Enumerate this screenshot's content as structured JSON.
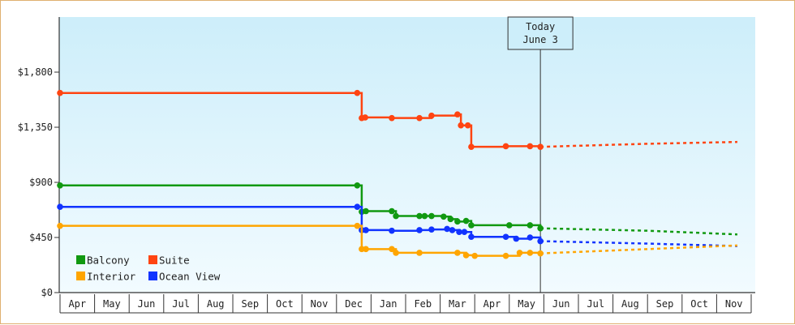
{
  "chart_data": {
    "type": "line",
    "title": "",
    "xlabel": "",
    "ylabel": "",
    "ylim": [
      0,
      2250
    ],
    "yticks": [
      {
        "value": 0,
        "label": "$0"
      },
      {
        "value": 450,
        "label": "$450"
      },
      {
        "value": 900,
        "label": "$900"
      },
      {
        "value": 1350,
        "label": "$1,350"
      },
      {
        "value": 1800,
        "label": "$1,800"
      }
    ],
    "months": [
      "Apr",
      "May",
      "Jun",
      "Jul",
      "Aug",
      "Sep",
      "Oct",
      "Nov",
      "Dec",
      "Jan",
      "Feb",
      "Mar",
      "Apr",
      "May",
      "Jun",
      "Jul",
      "Aug",
      "Sep",
      "Oct",
      "Nov"
    ],
    "today": {
      "line1": "Today",
      "line2": "June 3",
      "x": 13.9
    },
    "legend": {
      "rows": [
        [
          {
            "name": "Balcony",
            "color": "#119911"
          },
          {
            "name": "Suite",
            "color": "#ff4411"
          }
        ],
        [
          {
            "name": "Interior",
            "color": "#ffa500"
          },
          {
            "name": "Ocean View",
            "color": "#1133ff"
          }
        ]
      ]
    },
    "series": [
      {
        "name": "Suite",
        "color": "#ff4411",
        "points": [
          [
            0,
            1630
          ],
          [
            8.6,
            1630
          ],
          [
            8.73,
            1425
          ],
          [
            8.83,
            1430
          ],
          [
            9.6,
            1425
          ],
          [
            10.4,
            1425
          ],
          [
            10.75,
            1445
          ],
          [
            11.5,
            1455
          ],
          [
            11.6,
            1365
          ],
          [
            11.8,
            1365
          ],
          [
            11.9,
            1190
          ],
          [
            12.9,
            1195
          ],
          [
            13.6,
            1195
          ],
          [
            13.9,
            1190
          ]
        ],
        "projection": [
          [
            13.9,
            1190
          ],
          [
            17,
            1215
          ],
          [
            19.6,
            1230
          ]
        ]
      },
      {
        "name": "Balcony",
        "color": "#119911",
        "points": [
          [
            0,
            875
          ],
          [
            8.6,
            875
          ],
          [
            8.73,
            660
          ],
          [
            8.85,
            665
          ],
          [
            9.6,
            665
          ],
          [
            9.72,
            625
          ],
          [
            10.4,
            625
          ],
          [
            10.55,
            625
          ],
          [
            10.75,
            625
          ],
          [
            11.1,
            620
          ],
          [
            11.3,
            600
          ],
          [
            11.5,
            580
          ],
          [
            11.75,
            585
          ],
          [
            11.9,
            550
          ],
          [
            13.0,
            550
          ],
          [
            13.6,
            550
          ],
          [
            13.9,
            525
          ]
        ],
        "projection": [
          [
            13.9,
            525
          ],
          [
            17,
            505
          ],
          [
            19.6,
            475
          ]
        ]
      },
      {
        "name": "Ocean View",
        "color": "#1133ff",
        "points": [
          [
            0,
            700
          ],
          [
            8.6,
            700
          ],
          [
            8.73,
            510
          ],
          [
            8.85,
            510
          ],
          [
            9.6,
            505
          ],
          [
            10.4,
            510
          ],
          [
            10.75,
            515
          ],
          [
            11.2,
            520
          ],
          [
            11.35,
            510
          ],
          [
            11.55,
            495
          ],
          [
            11.7,
            495
          ],
          [
            11.9,
            455
          ],
          [
            12.9,
            455
          ],
          [
            13.2,
            440
          ],
          [
            13.6,
            450
          ],
          [
            13.9,
            420
          ]
        ],
        "projection": [
          [
            13.9,
            420
          ],
          [
            17,
            400
          ],
          [
            19.6,
            380
          ]
        ]
      },
      {
        "name": "Interior",
        "color": "#ffa500",
        "points": [
          [
            0,
            545
          ],
          [
            8.6,
            545
          ],
          [
            8.73,
            355
          ],
          [
            8.85,
            355
          ],
          [
            9.6,
            355
          ],
          [
            9.72,
            325
          ],
          [
            10.4,
            325
          ],
          [
            11.5,
            325
          ],
          [
            11.75,
            305
          ],
          [
            12.0,
            300
          ],
          [
            12.9,
            300
          ],
          [
            13.3,
            325
          ],
          [
            13.6,
            325
          ],
          [
            13.9,
            320
          ]
        ],
        "projection": [
          [
            13.9,
            320
          ],
          [
            17,
            355
          ],
          [
            19.6,
            385
          ]
        ]
      }
    ]
  }
}
